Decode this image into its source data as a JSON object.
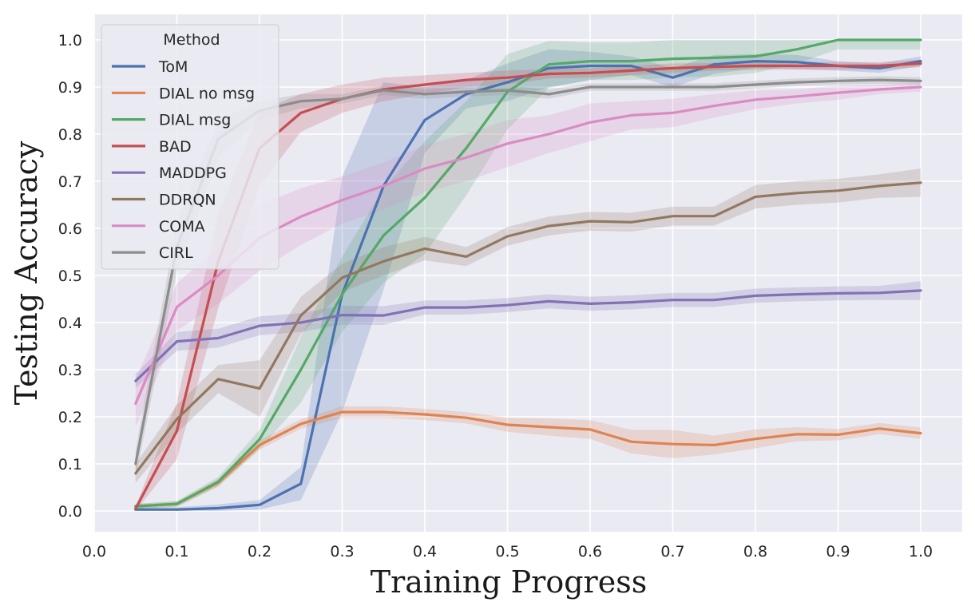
{
  "chart_data": {
    "type": "line",
    "xlabel": "Training Progress",
    "ylabel": "Testing Accuracy",
    "xlim": [
      0.0,
      1.0
    ],
    "ylim": [
      0.0,
      1.0
    ],
    "xticks": [
      "0.0",
      "0.1",
      "0.2",
      "0.3",
      "0.4",
      "0.5",
      "0.6",
      "0.7",
      "0.8",
      "0.9",
      "1.0"
    ],
    "yticks": [
      "0.0",
      "0.1",
      "0.2",
      "0.3",
      "0.4",
      "0.5",
      "0.6",
      "0.7",
      "0.8",
      "0.9",
      "1.0"
    ],
    "grid": true,
    "background": "#eaeaf2",
    "legend": {
      "title": "Method",
      "placement": "top-left"
    },
    "x": [
      0.05,
      0.1,
      0.15,
      0.2,
      0.25,
      0.3,
      0.35,
      0.4,
      0.45,
      0.5,
      0.55,
      0.6,
      0.65,
      0.7,
      0.75,
      0.8,
      0.85,
      0.9,
      0.95,
      1.0
    ],
    "series": [
      {
        "name": "ToM",
        "color": "#4c72b0",
        "values": [
          0.003,
          0.003,
          0.006,
          0.013,
          0.058,
          0.46,
          0.69,
          0.83,
          0.885,
          0.91,
          0.94,
          0.945,
          0.945,
          0.92,
          0.948,
          0.955,
          0.953,
          0.945,
          0.94,
          0.955
        ],
        "band": [
          0.005,
          0.005,
          0.008,
          0.01,
          0.035,
          0.25,
          0.22,
          0.07,
          0.03,
          0.04,
          0.04,
          0.03,
          0.02,
          0.02,
          0.02,
          0.015,
          0.015,
          0.01,
          0.01,
          0.01
        ]
      },
      {
        "name": "DIAL no msg",
        "color": "#dd8452",
        "values": [
          0.01,
          0.015,
          0.06,
          0.14,
          0.185,
          0.21,
          0.21,
          0.205,
          0.198,
          0.183,
          0.178,
          0.173,
          0.147,
          0.142,
          0.14,
          0.153,
          0.163,
          0.162,
          0.175,
          0.165
        ],
        "band": [
          0.005,
          0.006,
          0.008,
          0.01,
          0.01,
          0.012,
          0.012,
          0.012,
          0.012,
          0.015,
          0.018,
          0.02,
          0.025,
          0.03,
          0.02,
          0.02,
          0.015,
          0.012,
          0.012,
          0.012
        ]
      },
      {
        "name": "DIAL msg",
        "color": "#55a868",
        "values": [
          0.01,
          0.015,
          0.062,
          0.152,
          0.3,
          0.46,
          0.585,
          0.665,
          0.77,
          0.89,
          0.948,
          0.955,
          0.955,
          0.96,
          0.962,
          0.965,
          0.98,
          1.0,
          1.0,
          1.0
        ],
        "band": [
          0.005,
          0.006,
          0.01,
          0.02,
          0.07,
          0.08,
          0.1,
          0.12,
          0.1,
          0.08,
          0.05,
          0.04,
          0.04,
          0.04,
          0.04,
          0.035,
          0.03,
          0.02,
          0.02,
          0.02
        ]
      },
      {
        "name": "BAD",
        "color": "#c44e52",
        "values": [
          0.005,
          0.17,
          0.53,
          0.77,
          0.845,
          0.875,
          0.895,
          0.905,
          0.915,
          0.92,
          0.928,
          0.93,
          0.935,
          0.94,
          0.943,
          0.945,
          0.945,
          0.945,
          0.945,
          0.95
        ],
        "band": [
          0.005,
          0.06,
          0.1,
          0.08,
          0.04,
          0.03,
          0.025,
          0.02,
          0.015,
          0.015,
          0.01,
          0.01,
          0.01,
          0.01,
          0.008,
          0.008,
          0.008,
          0.008,
          0.008,
          0.008
        ]
      },
      {
        "name": "MADDPG",
        "color": "#8172b3",
        "values": [
          0.276,
          0.36,
          0.367,
          0.393,
          0.4,
          0.416,
          0.415,
          0.432,
          0.432,
          0.437,
          0.445,
          0.44,
          0.443,
          0.448,
          0.448,
          0.457,
          0.46,
          0.462,
          0.463,
          0.468
        ],
        "band": [
          0.015,
          0.02,
          0.02,
          0.02,
          0.02,
          0.02,
          0.02,
          0.015,
          0.015,
          0.015,
          0.015,
          0.015,
          0.015,
          0.015,
          0.015,
          0.015,
          0.015,
          0.015,
          0.015,
          0.02
        ]
      },
      {
        "name": "DDRQN",
        "color": "#937860",
        "values": [
          0.08,
          0.195,
          0.28,
          0.26,
          0.415,
          0.495,
          0.53,
          0.557,
          0.54,
          0.583,
          0.605,
          0.615,
          0.613,
          0.626,
          0.626,
          0.667,
          0.675,
          0.68,
          0.69,
          0.697
        ],
        "band": [
          0.02,
          0.03,
          0.03,
          0.06,
          0.04,
          0.03,
          0.03,
          0.025,
          0.02,
          0.02,
          0.02,
          0.02,
          0.02,
          0.02,
          0.02,
          0.025,
          0.025,
          0.025,
          0.025,
          0.03
        ]
      },
      {
        "name": "COMA",
        "color": "#da8bc3",
        "values": [
          0.228,
          0.433,
          0.5,
          0.58,
          0.625,
          0.66,
          0.69,
          0.727,
          0.75,
          0.78,
          0.8,
          0.825,
          0.84,
          0.845,
          0.86,
          0.873,
          0.88,
          0.888,
          0.895,
          0.9
        ],
        "band": [
          0.05,
          0.05,
          0.06,
          0.07,
          0.06,
          0.05,
          0.05,
          0.05,
          0.05,
          0.05,
          0.04,
          0.04,
          0.03,
          0.03,
          0.025,
          0.02,
          0.015,
          0.015,
          0.01,
          0.01
        ]
      },
      {
        "name": "CIRL",
        "color": "#8c8c8c",
        "values": [
          0.1,
          0.56,
          0.79,
          0.85,
          0.87,
          0.875,
          0.893,
          0.885,
          0.89,
          0.893,
          0.885,
          0.9,
          0.9,
          0.9,
          0.9,
          0.905,
          0.91,
          0.913,
          0.915,
          0.913
        ],
        "band": [
          0.03,
          0.05,
          0.04,
          0.02,
          0.015,
          0.01,
          0.01,
          0.01,
          0.01,
          0.01,
          0.01,
          0.008,
          0.008,
          0.008,
          0.008,
          0.008,
          0.008,
          0.008,
          0.008,
          0.008
        ]
      }
    ]
  }
}
